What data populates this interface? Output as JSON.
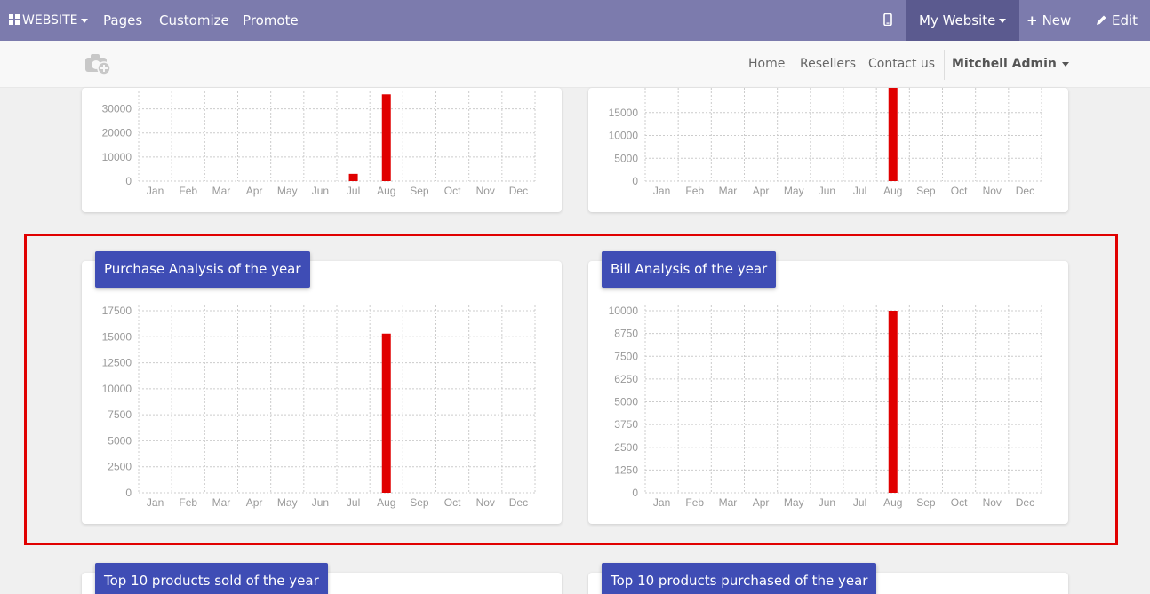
{
  "topbar": {
    "website_menu": "WEBSITE",
    "pages": "Pages",
    "customize": "Customize",
    "promote": "Promote",
    "my_website": "My Website",
    "new": "New",
    "edit": "Edit"
  },
  "sitenav": {
    "home": "Home",
    "resellers": "Resellers",
    "contact": "Contact us",
    "user": "Mitchell Admin"
  },
  "cards": {
    "purchase_title": "Purchase Analysis of the year",
    "bill_title": "Bill Analysis of the year",
    "top_sold_title": "Top 10 products sold of the year",
    "top_purchased_title": "Top 10 products purchased of the year"
  },
  "colors": {
    "bar": "#e00000",
    "title_bg": "#3f4db5",
    "topbar": "#7c7bad"
  },
  "chart_data": [
    {
      "type": "bar",
      "months": [
        "Jan",
        "Feb",
        "Mar",
        "Apr",
        "May",
        "Jun",
        "Jul",
        "Aug",
        "Sep",
        "Oct",
        "Nov",
        "Dec"
      ],
      "yticks": [
        0,
        10000,
        20000,
        30000
      ],
      "values": [
        0,
        0,
        0,
        0,
        0,
        0,
        3000,
        36000,
        0,
        0,
        0,
        0
      ],
      "ylim": [
        0,
        35000
      ],
      "title": ""
    },
    {
      "type": "bar",
      "months": [
        "Jan",
        "Feb",
        "Mar",
        "Apr",
        "May",
        "Jun",
        "Jul",
        "Aug",
        "Sep",
        "Oct",
        "Nov",
        "Dec"
      ],
      "yticks": [
        0,
        5000,
        10000,
        15000
      ],
      "values": [
        0,
        0,
        0,
        0,
        0,
        0,
        0,
        21000,
        0,
        0,
        0,
        0
      ],
      "ylim": [
        0,
        20000
      ],
      "title": ""
    },
    {
      "type": "bar",
      "months": [
        "Jan",
        "Feb",
        "Mar",
        "Apr",
        "May",
        "Jun",
        "Jul",
        "Aug",
        "Sep",
        "Oct",
        "Nov",
        "Dec"
      ],
      "yticks": [
        0,
        2500,
        5000,
        7500,
        10000,
        12500,
        15000,
        17500
      ],
      "values": [
        0,
        0,
        0,
        0,
        0,
        0,
        0,
        15300,
        0,
        0,
        0,
        0
      ],
      "ylim": [
        0,
        17500
      ],
      "title": "Purchase Analysis of the year"
    },
    {
      "type": "bar",
      "months": [
        "Jan",
        "Feb",
        "Mar",
        "Apr",
        "May",
        "Jun",
        "Jul",
        "Aug",
        "Sep",
        "Oct",
        "Nov",
        "Dec"
      ],
      "yticks": [
        0,
        1250,
        2500,
        3750,
        5000,
        6250,
        7500,
        8750,
        10000
      ],
      "values": [
        0,
        0,
        0,
        0,
        0,
        0,
        0,
        10000,
        0,
        0,
        0,
        0
      ],
      "ylim": [
        0,
        10000
      ],
      "title": "Bill Analysis of the year"
    }
  ]
}
